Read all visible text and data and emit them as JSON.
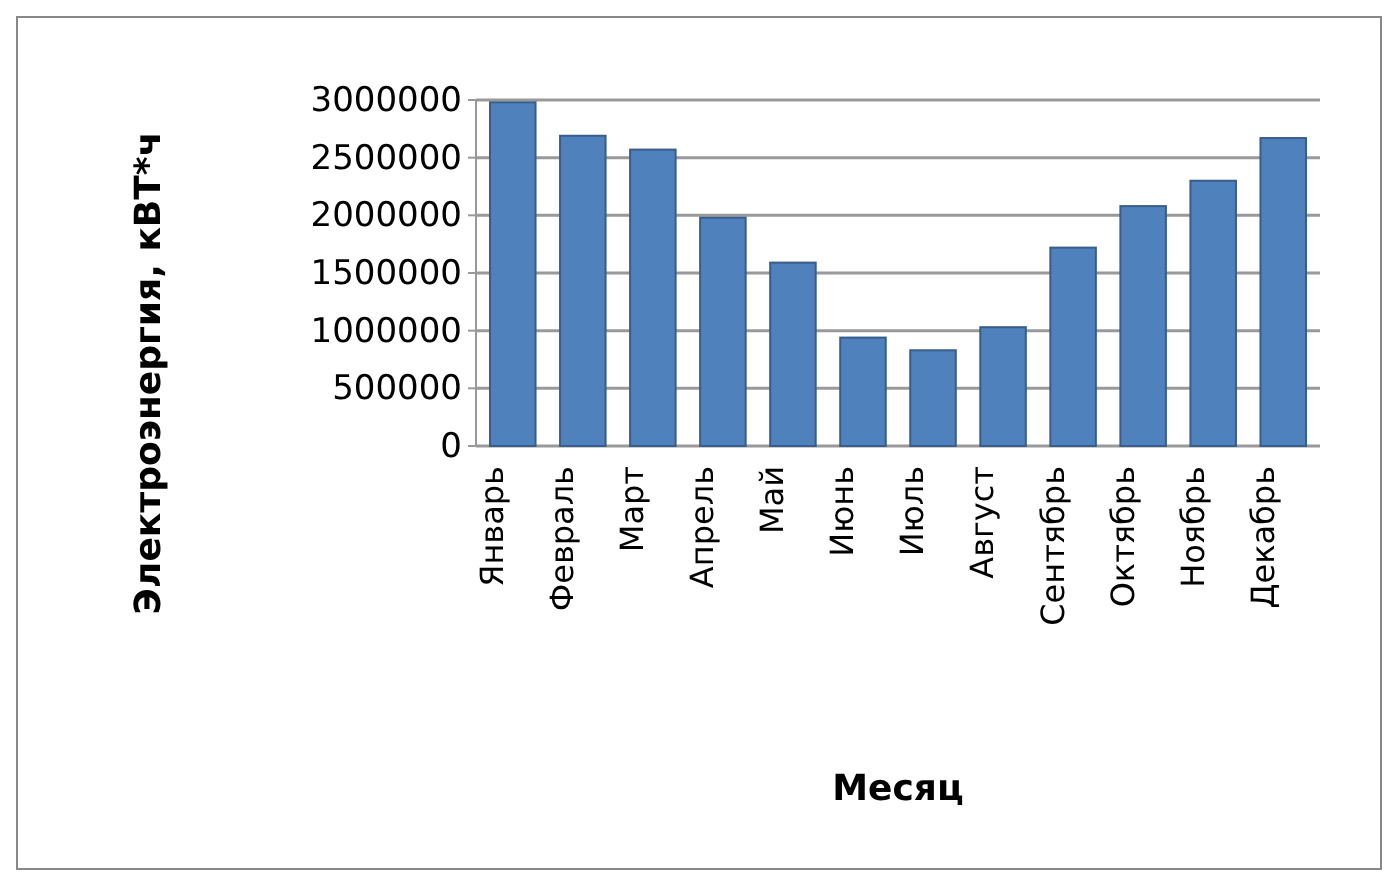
{
  "chart_data": {
    "type": "bar",
    "xlabel": "Месяц",
    "ylabel": "Электроэнергия, кВТ*ч",
    "categories": [
      "Январь",
      "Февраль",
      "Март",
      "Апрель",
      "Май",
      "Июнь",
      "Июль",
      "Август",
      "Сентябрь",
      "Октябрь",
      "Ноябрь",
      "Декабрь"
    ],
    "values": [
      2980000,
      2690000,
      2570000,
      1980000,
      1590000,
      940000,
      830000,
      1030000,
      1720000,
      2080000,
      2300000,
      2670000
    ],
    "color": "#4f81bd",
    "ylim": [
      0,
      3000000
    ],
    "yticks": [
      0,
      500000,
      1000000,
      1500000,
      2000000,
      2500000,
      3000000
    ],
    "grid": "y"
  }
}
